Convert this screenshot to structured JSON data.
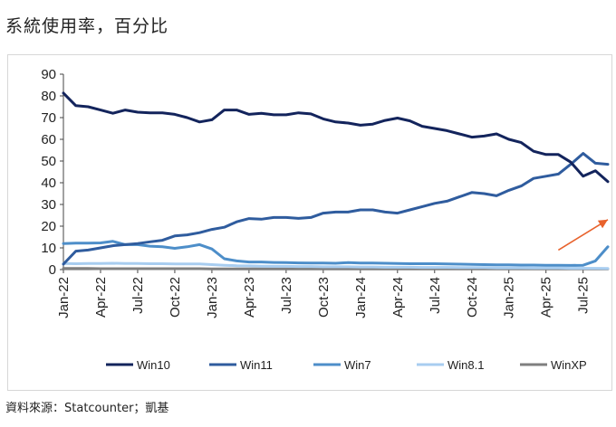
{
  "title": "系統使用率，百分比",
  "source": "資料來源：Statcounter；凱基",
  "chart_data": {
    "type": "line",
    "title": "系統使用率，百分比",
    "xlabel": "",
    "ylabel": "",
    "ylim": [
      0,
      90
    ],
    "yticks": [
      "0",
      "10",
      "20",
      "30",
      "40",
      "50",
      "60",
      "70",
      "80",
      "90"
    ],
    "grid": false,
    "legend_position": "bottom",
    "x": [
      "Jan-22",
      "Feb-22",
      "Mar-22",
      "Apr-22",
      "May-22",
      "Jun-22",
      "Jul-22",
      "Aug-22",
      "Sep-22",
      "Oct-22",
      "Nov-22",
      "Dec-22",
      "Jan-23",
      "Feb-23",
      "Mar-23",
      "Apr-23",
      "May-23",
      "Jun-23",
      "Jul-23",
      "Aug-23",
      "Sep-23",
      "Oct-23",
      "Nov-23",
      "Dec-23",
      "Jan-24",
      "Feb-24",
      "Mar-24",
      "Apr-24",
      "May-24",
      "Jun-24",
      "Jul-24",
      "Aug-24",
      "Sep-24",
      "Oct-24",
      "Nov-24",
      "Dec-24",
      "Jan-25",
      "Feb-25",
      "Mar-25",
      "Apr-25",
      "May-25",
      "Jun-25",
      "Jul-25",
      "Aug-25",
      "Sep-25"
    ],
    "xtick_labels": [
      "Jan-22",
      "Apr-22",
      "Jul-22",
      "Oct-22",
      "Jan-23",
      "Apr-23",
      "Jul-23",
      "Oct-23",
      "Jan-24",
      "Apr-24",
      "Jul-24",
      "Oct-24",
      "Jan-25",
      "Apr-25",
      "Jul-25"
    ],
    "series": [
      {
        "name": "Win10",
        "color": "#13245c",
        "values": [
          81.3,
          75.5,
          75,
          73.5,
          72,
          73.5,
          72.5,
          72.2,
          72.2,
          71.5,
          70,
          68,
          69,
          73.5,
          73.5,
          71.5,
          72,
          71.3,
          71.3,
          72.2,
          71.7,
          69.4,
          68,
          67.5,
          66.5,
          67,
          68.7,
          69.8,
          68.5,
          66,
          65,
          64,
          62.5,
          61,
          61.5,
          62.5,
          60,
          58.5,
          54.5,
          53,
          53,
          49.5,
          43,
          45.5,
          40.5
        ]
      },
      {
        "name": "Win11",
        "color": "#2f5c9e",
        "values": [
          2.5,
          8.5,
          9,
          10,
          11,
          11.5,
          12,
          12.8,
          13.5,
          15.5,
          16,
          17,
          18.5,
          19.5,
          22,
          23.5,
          23.2,
          24,
          24,
          23.6,
          24,
          26,
          26.5,
          26.5,
          27.5,
          27.5,
          26.5,
          26,
          27.5,
          29,
          30.5,
          31.5,
          33.5,
          35.5,
          35,
          34,
          36.5,
          38.5,
          42,
          43,
          44,
          48.5,
          53.5,
          49,
          48.5
        ]
      },
      {
        "name": "Win7",
        "color": "#4d8ec9",
        "values": [
          12,
          12.2,
          12.2,
          12.3,
          13,
          11.5,
          11.5,
          10.8,
          10.5,
          9.8,
          10.5,
          11.5,
          9.5,
          5,
          4,
          3.5,
          3.5,
          3.3,
          3.2,
          3.1,
          3,
          3,
          2.9,
          3.2,
          3,
          3,
          2.9,
          2.8,
          2.7,
          2.7,
          2.7,
          2.6,
          2.5,
          2.4,
          2.3,
          2.2,
          2.2,
          2.1,
          2.1,
          2,
          2,
          1.9,
          2,
          4,
          10.5
        ]
      },
      {
        "name": "Win8.1",
        "color": "#a8cdf0",
        "values": [
          2.8,
          2.7,
          2.8,
          2.8,
          2.9,
          2.8,
          2.8,
          2.7,
          2.7,
          2.6,
          2.6,
          2.6,
          2.3,
          2,
          1.8,
          1.7,
          1.6,
          1.5,
          1.5,
          1.4,
          1.4,
          1.3,
          1.3,
          1.3,
          1.2,
          1.2,
          1.1,
          1.1,
          1.1,
          1,
          1,
          1,
          0.9,
          0.9,
          0.9,
          0.8,
          0.8,
          0.8,
          0.7,
          0.7,
          0.7,
          0.6,
          0.6,
          0.6,
          0.5
        ]
      },
      {
        "name": "WinXP",
        "color": "#7f7f7f",
        "values": [
          0.5,
          0.5,
          0.5,
          0.4,
          0.4,
          0.4,
          0.4,
          0.4,
          0.4,
          0.4,
          0.4,
          0.4,
          0.3,
          0.3,
          0.3,
          0.3,
          0.3,
          0.3,
          0.3,
          0.3,
          0.3,
          0.3,
          0.3,
          0.3,
          0.3,
          0.3,
          0.3,
          0.3,
          0.3,
          0.3,
          0.3,
          0.3,
          0.3,
          0.3,
          0.3,
          0.3,
          0.3,
          0.3,
          0.3,
          0.3,
          0.3,
          0.3,
          0.3,
          0.3,
          0.3
        ]
      }
    ],
    "annotations": [
      {
        "type": "arrow",
        "color": "#e8622c",
        "from": {
          "x": "May-25",
          "y": 9
        },
        "to": {
          "x": "Sep-25",
          "y": 23
        }
      }
    ]
  }
}
